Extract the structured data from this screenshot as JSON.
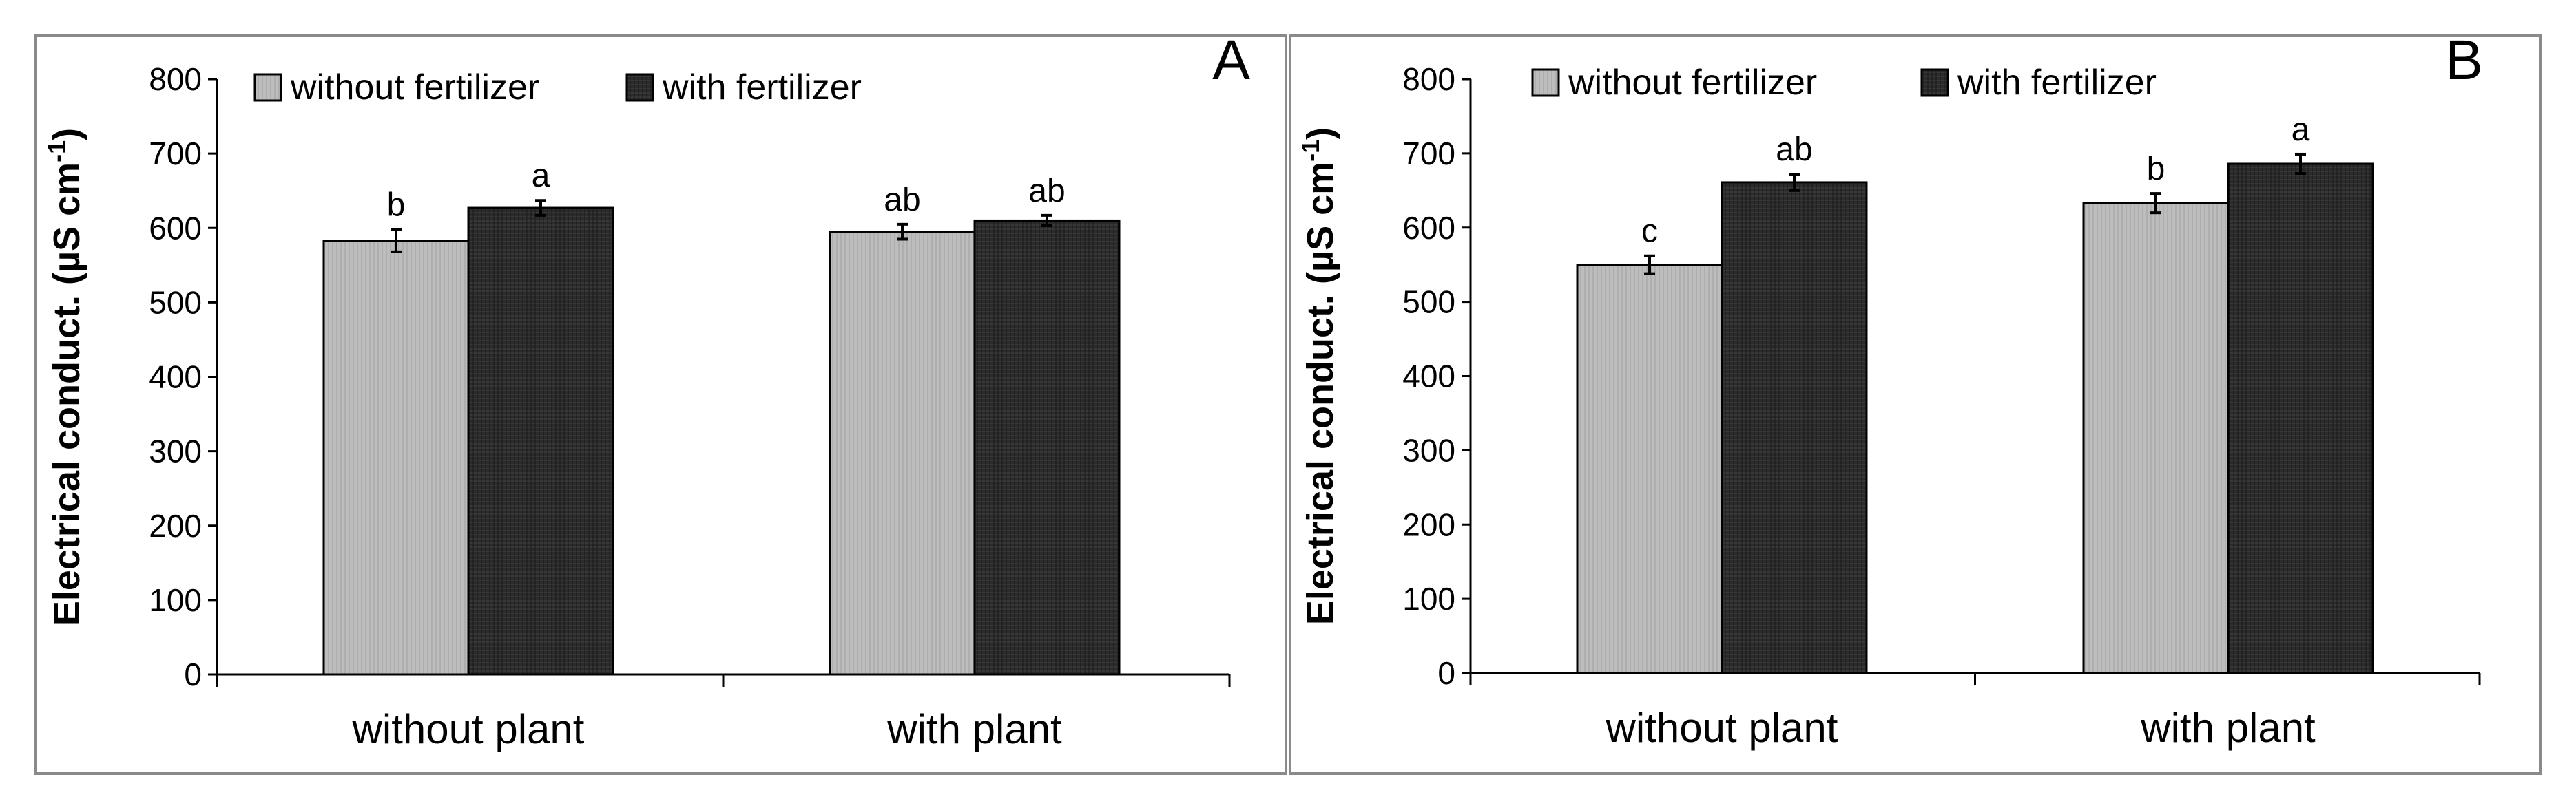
{
  "chart_data": [
    {
      "panel_label": "A",
      "type": "bar",
      "ylabel": "Electrical conduct. (µS cm",
      "ylabel_sup": "-1",
      "ylabel_tail": ")",
      "ylim": [
        0,
        800
      ],
      "yticks": [
        "0",
        "100",
        "200",
        "300",
        "400",
        "500",
        "600",
        "700",
        "800"
      ],
      "categories": [
        "without plant",
        "with plant"
      ],
      "series": [
        {
          "name": "without fertilizer",
          "color": "#bdbdbd",
          "values": [
            583,
            595
          ],
          "errors": [
            15,
            10
          ],
          "letters": [
            "b",
            "ab"
          ]
        },
        {
          "name": "with fertilizer",
          "color": "#2a2a2a",
          "values": [
            627,
            610
          ],
          "errors": [
            10,
            7
          ],
          "letters": [
            "a",
            "ab"
          ]
        }
      ],
      "legend": "top-left"
    },
    {
      "panel_label": "B",
      "type": "bar",
      "ylabel": "Electrical conduct. (µS cm",
      "ylabel_sup": "-1",
      "ylabel_tail": ")",
      "ylim": [
        0,
        800
      ],
      "yticks": [
        "0",
        "100",
        "200",
        "300",
        "400",
        "500",
        "600",
        "700",
        "800"
      ],
      "categories": [
        "without plant",
        "with plant"
      ],
      "series": [
        {
          "name": "without fertilizer",
          "color": "#bdbdbd",
          "values": [
            550,
            633
          ],
          "errors": [
            12,
            13
          ],
          "letters": [
            "c",
            "b"
          ]
        },
        {
          "name": "with fertilizer",
          "color": "#2a2a2a",
          "values": [
            661,
            686
          ],
          "errors": [
            11,
            13
          ],
          "letters": [
            "ab",
            "a"
          ]
        }
      ],
      "legend": "top-left"
    }
  ]
}
